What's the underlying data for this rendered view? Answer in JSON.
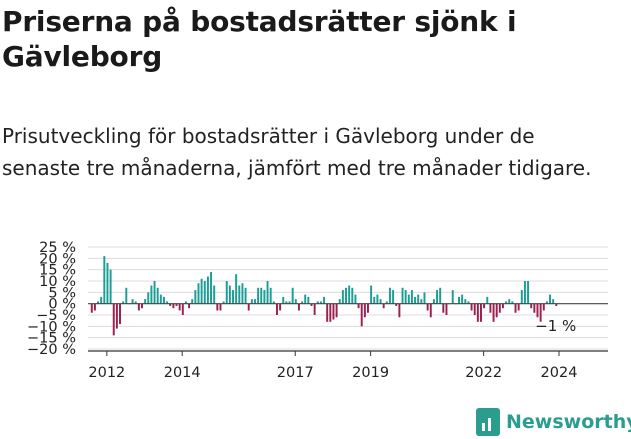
{
  "title": "Priserna på bostadsrätter sjönk i Gävleborg",
  "subtitle": "Prisutveckling för bostadsrätter i Gävleborg under de senaste tre månaderna, jämfört med tre månader tidigare.",
  "brand": {
    "name": "Newsworthy",
    "icon": "newsworthy-logo-icon"
  },
  "colors": {
    "positive": "#1a9e96",
    "negative": "#9b1f4f",
    "accent": "#2a9d8f"
  },
  "chart_data": {
    "type": "bar",
    "title": "",
    "xlabel": "",
    "ylabel": "",
    "ylim": [
      -20,
      25
    ],
    "yticks": [
      25,
      20,
      15,
      10,
      5,
      0,
      -5,
      -10,
      -15,
      -20
    ],
    "ytick_labels": [
      "25 %",
      "20 %",
      "15 %",
      "10 %",
      "5 %",
      "0 %",
      "−5 %",
      "−10 %",
      "−15 %",
      "−20 %"
    ],
    "xtick_labels": [
      "2012",
      "2014",
      "2017",
      "2019",
      "2022",
      "2024"
    ],
    "xticks": [
      2012,
      2014,
      2017,
      2019,
      2022,
      2024
    ],
    "xlim": [
      2011.5,
      2025.3
    ],
    "grid": true,
    "last_value_label": "−1 %",
    "series": [
      {
        "start": 2011.6,
        "step": 0.0833,
        "values": [
          -4,
          -3,
          1,
          3,
          21,
          18,
          15,
          -14,
          -11,
          -9,
          1,
          7,
          0,
          2,
          1,
          -3,
          -2,
          2,
          5,
          8,
          10,
          7,
          4,
          3,
          1,
          -1,
          -2,
          -1,
          -3,
          -5,
          1,
          -2,
          2,
          6,
          9,
          11,
          10,
          12,
          14,
          8,
          -3,
          -3,
          1,
          10,
          8,
          6,
          13,
          8,
          9,
          7,
          -3,
          2,
          2,
          7,
          7,
          6,
          10,
          7,
          1,
          -5,
          -3,
          3,
          1,
          1,
          7,
          2,
          -3,
          1,
          4,
          3,
          -1,
          -5,
          1,
          1,
          3,
          -8,
          -8,
          -7,
          -6,
          2,
          6,
          7,
          8,
          7,
          4,
          -2,
          -10,
          -6,
          -4,
          8,
          3,
          4,
          2,
          -2,
          1,
          7,
          6,
          -1,
          -6,
          7,
          6,
          4,
          6,
          3,
          4,
          2,
          5,
          -3,
          -6,
          2,
          6,
          7,
          -4,
          -5,
          0,
          6,
          0,
          3,
          4,
          2,
          1,
          -3,
          -5,
          -8,
          -8,
          -2,
          3,
          -4,
          -8,
          -6,
          -4,
          -2,
          1,
          2,
          1,
          -4,
          -3,
          6,
          10,
          10,
          -2,
          -4,
          -6,
          -8,
          -3,
          1,
          4,
          2,
          -1
        ]
      }
    ]
  }
}
